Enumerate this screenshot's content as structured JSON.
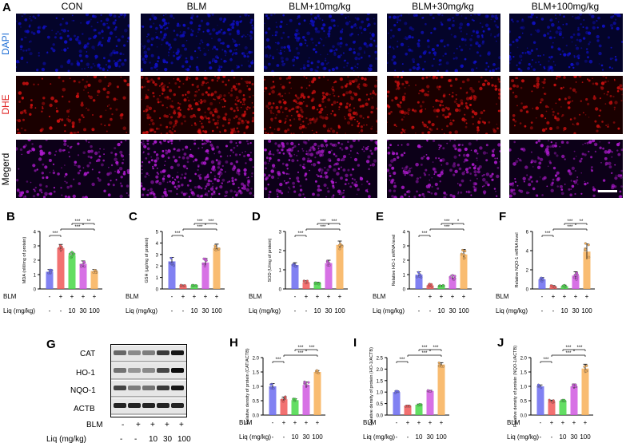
{
  "figure_letter_A": "A",
  "columns": [
    "CON",
    "BLM",
    "BLM+10mg/kg",
    "BLM+30mg/kg",
    "BLM+100mg/kg"
  ],
  "rows": [
    {
      "label": "DAPI",
      "color": "#1f6fd6",
      "tile": "#1010c8",
      "tile_bg": "#04042a"
    },
    {
      "label": "DHE",
      "color": "#e02020",
      "tile": "#d01010",
      "tile_bg": "#1a0000"
    },
    {
      "label": "Megerd",
      "color": "#000000",
      "tile": "#b01ad0",
      "tile_bg": "#0c0018"
    }
  ],
  "tile_intensity": [
    [
      0.55,
      0.7,
      0.65,
      0.5,
      0.45
    ],
    [
      0.25,
      0.9,
      0.8,
      0.55,
      0.35
    ],
    [
      0.45,
      0.95,
      0.85,
      0.6,
      0.45
    ]
  ],
  "treatment": {
    "blm_label": "BLM",
    "blm_signs": [
      "-",
      "+",
      "+",
      "+",
      "+"
    ],
    "liq_label": "Liq (mg/kg)",
    "liq_values": [
      "-",
      "-",
      "10",
      "30",
      "100"
    ]
  },
  "bar_colors": [
    "#6b6bf0",
    "#f05858",
    "#48d848",
    "#d058e0",
    "#f8b058"
  ],
  "sig_marks": {
    "three": "***",
    "two": "**",
    "one": "*"
  },
  "chart_data": [
    {
      "panel": "B",
      "type": "bar",
      "ylabel": "MDA (nM/mg of protein)",
      "ylim": [
        0,
        4
      ],
      "yticks": [
        0,
        1,
        2,
        3,
        4
      ],
      "values": [
        1.2,
        2.85,
        2.35,
        1.75,
        1.25
      ],
      "errors": [
        0.15,
        0.25,
        0.2,
        0.2,
        0.1
      ],
      "sig_top": [
        "***",
        "**"
      ],
      "sig_mid": "***",
      "sig_left": "***"
    },
    {
      "panel": "C",
      "type": "bar",
      "ylabel": "GSH (μg/mg of protein)",
      "ylim": [
        0,
        5
      ],
      "yticks": [
        0,
        1,
        2,
        3,
        4,
        5
      ],
      "values": [
        2.4,
        0.3,
        0.3,
        2.3,
        3.6
      ],
      "errors": [
        0.35,
        0.05,
        0.05,
        0.35,
        0.3
      ],
      "sig_top": [
        "***",
        "***"
      ],
      "sig_mid": "***",
      "sig_left": "***"
    },
    {
      "panel": "D",
      "type": "bar",
      "ylabel": "SOD (U/mg of protein)",
      "ylim": [
        0,
        3
      ],
      "yticks": [
        0,
        1,
        2,
        3
      ],
      "values": [
        1.25,
        0.35,
        0.3,
        1.35,
        2.3
      ],
      "errors": [
        0.12,
        0.08,
        0.05,
        0.15,
        0.2
      ],
      "sig_top": [
        "***",
        "***"
      ],
      "sig_mid": "***",
      "sig_left": "***"
    },
    {
      "panel": "E",
      "type": "bar",
      "ylabel": "Relative HO-1 mRNA level",
      "ylim": [
        0,
        4
      ],
      "yticks": [
        0,
        1,
        2,
        3,
        4
      ],
      "values": [
        1.0,
        0.25,
        0.2,
        0.8,
        2.4
      ],
      "errors": [
        0.2,
        0.1,
        0.05,
        0.15,
        0.35
      ],
      "sig_top": [
        "***",
        "*"
      ],
      "sig_mid": "***",
      "sig_left": "***"
    },
    {
      "panel": "F",
      "type": "bar",
      "ylabel": "Relative NQO-1 mRNA level",
      "ylim": [
        0,
        6
      ],
      "yticks": [
        0,
        2,
        4,
        6
      ],
      "values": [
        1.0,
        0.25,
        0.3,
        1.4,
        3.9
      ],
      "errors": [
        0.2,
        0.1,
        0.1,
        0.4,
        0.8
      ],
      "sig_top": [
        "***",
        "**"
      ],
      "sig_mid": "***",
      "sig_left": "***"
    },
    {
      "panel": "H",
      "type": "bar",
      "ylabel": "Relative density of protein (CAT/ACTB)",
      "ylim": [
        0,
        2.0
      ],
      "yticks": [
        0,
        0.5,
        1.0,
        1.5,
        2.0
      ],
      "values": [
        1.0,
        0.55,
        0.52,
        1.05,
        1.5
      ],
      "errors": [
        0.1,
        0.08,
        0.05,
        0.1,
        0.05
      ],
      "sig_top": [
        "***",
        "***"
      ],
      "sig_mid": "***",
      "sig_left": "***"
    },
    {
      "panel": "I",
      "type": "bar",
      "ylabel": "Relative density of protein (HO-1/ACTB)",
      "ylim": [
        0,
        2.5
      ],
      "yticks": [
        0,
        0.5,
        1.0,
        1.5,
        2.0,
        2.5
      ],
      "values": [
        1.0,
        0.4,
        0.45,
        1.05,
        2.2
      ],
      "errors": [
        0.05,
        0.03,
        0.03,
        0.03,
        0.08
      ],
      "sig_top": [
        "***",
        "***"
      ],
      "sig_mid": "***",
      "sig_left": "***"
    },
    {
      "panel": "J",
      "type": "bar",
      "ylabel": "Relative density of protein (NQO-1/ACTB)",
      "ylim": [
        0,
        2.0
      ],
      "yticks": [
        0,
        0.5,
        1.0,
        1.5,
        2.0
      ],
      "values": [
        1.0,
        0.48,
        0.5,
        1.0,
        1.62
      ],
      "errors": [
        0.05,
        0.04,
        0.03,
        0.08,
        0.15
      ],
      "sig_top": [
        "***",
        "***"
      ],
      "sig_mid": "***",
      "sig_left": "***"
    }
  ],
  "western": {
    "panel": "G",
    "bands": [
      "CAT",
      "HO-1",
      "NQO-1",
      "ACTB"
    ]
  }
}
